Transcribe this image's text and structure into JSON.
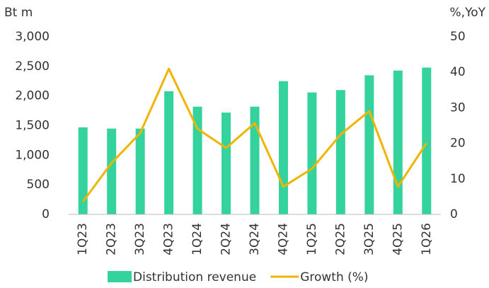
{
  "chart_data": {
    "type": "bar_line",
    "y_label": "Bt m",
    "y2_label": "%,YoY",
    "categories": [
      "1Q23",
      "2Q23",
      "3Q23",
      "4Q23",
      "1Q24",
      "2Q24",
      "3Q24",
      "4Q24",
      "1Q25",
      "2Q25",
      "3Q25",
      "4Q25",
      "1Q26"
    ],
    "series": [
      {
        "name": "Distribution revenue",
        "type": "bar",
        "color": "#34d39e",
        "values": [
          1470,
          1450,
          1450,
          2080,
          1820,
          1720,
          1820,
          2250,
          2060,
          2100,
          2350,
          2430,
          2480
        ]
      },
      {
        "name": "Growth (%)",
        "type": "line",
        "axis": "y2",
        "color": "#f0b400",
        "values": [
          3.6,
          14.5,
          22.9,
          41,
          24.1,
          18.7,
          25.7,
          7.8,
          12.9,
          22.5,
          29.1,
          7.8,
          20.1
        ]
      }
    ],
    "ylim": [
      0,
      3000
    ],
    "yticks": [
      0,
      500,
      {
        "value": 1000,
        "label": "1,000"
      },
      {
        "value": 1500,
        "label": "1,500"
      },
      {
        "value": 2000,
        "label": "2,000"
      },
      {
        "value": 2500,
        "label": "2,500"
      },
      {
        "value": 3000,
        "label": "3,000"
      }
    ],
    "y2lim": [
      0,
      50
    ],
    "y2ticks": [
      0,
      10,
      20,
      30,
      40,
      50
    ],
    "grid": false,
    "legend": "bottom"
  }
}
